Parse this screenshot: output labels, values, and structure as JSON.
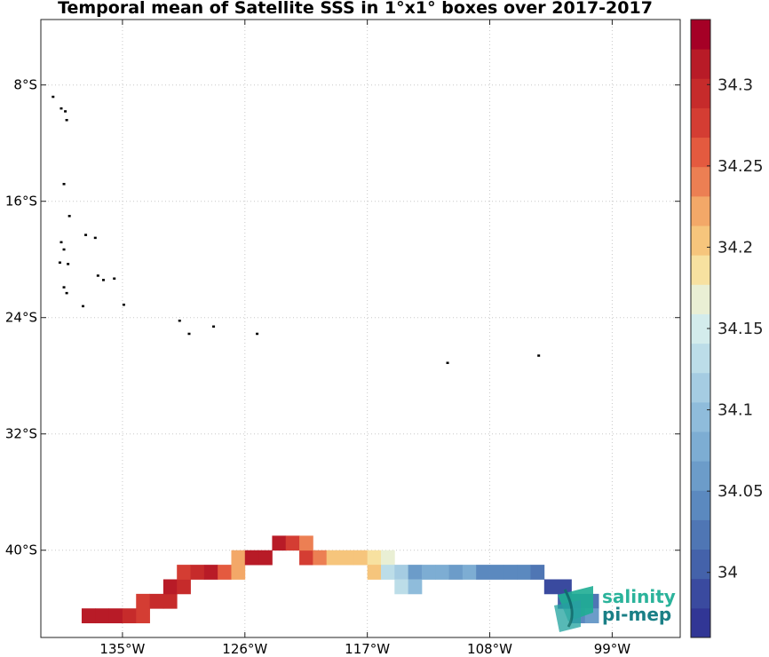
{
  "chart_data": {
    "type": "heatmap",
    "title": "Temporal mean of Satellite SSS in 1°x1° boxes over 2017-2017",
    "xlim": [
      -141,
      -94
    ],
    "ylim": [
      -46,
      -3.5
    ],
    "x_ticks": [
      -135,
      -126,
      -117,
      -108,
      -99
    ],
    "y_ticks": [
      -8,
      -16,
      -24,
      -32,
      -40
    ],
    "x_tick_labels": [
      "135°W",
      "126°W",
      "117°W",
      "108°W",
      "99°W"
    ],
    "y_tick_labels": [
      "8°S",
      "16°S",
      "24°S",
      "32°S",
      "40°S"
    ],
    "grid": true,
    "colorbar": {
      "range": [
        33.96,
        34.34
      ],
      "ticks": [
        34,
        34.05,
        34.1,
        34.15,
        34.2,
        34.25,
        34.3
      ],
      "tick_labels": [
        "34",
        "34.05",
        "34.1",
        "34.15",
        "34.2",
        "34.25",
        "34.3"
      ],
      "colors": [
        "#313695",
        "#3a4a9f",
        "#4462aa",
        "#4f76b4",
        "#5b89bf",
        "#6c9cc9",
        "#7dadd3",
        "#8fbcdb",
        "#a5cce2",
        "#bcdde8",
        "#d3ecec",
        "#e9efd4",
        "#f7e1a0",
        "#f6c57c",
        "#f3a868",
        "#ec7f53",
        "#e45a3f",
        "#d43d33",
        "#c62b2b",
        "#b81b27",
        "#a50026"
      ],
      "location": "right"
    },
    "cells": [
      [
        -138,
        -45,
        34.32
      ],
      [
        -137,
        -45,
        34.32
      ],
      [
        -136,
        -45,
        34.32
      ],
      [
        -135,
        -45,
        34.3
      ],
      [
        -134,
        -45,
        34.27
      ],
      [
        -134,
        -44,
        34.28
      ],
      [
        -133,
        -44,
        34.3
      ],
      [
        -132,
        -44,
        34.3
      ],
      [
        -132,
        -43,
        34.31
      ],
      [
        -131,
        -43,
        34.3
      ],
      [
        -131,
        -42,
        34.28
      ],
      [
        -130,
        -42,
        34.3
      ],
      [
        -129,
        -42,
        34.31
      ],
      [
        -128,
        -42,
        34.25
      ],
      [
        -127,
        -42,
        34.22
      ],
      [
        -127,
        -41,
        34.23
      ],
      [
        -126,
        -41,
        34.31
      ],
      [
        -125,
        -41,
        34.32
      ],
      [
        -122,
        -41,
        34.28
      ],
      [
        -121,
        -41,
        34.24
      ],
      [
        -120,
        -41,
        34.2
      ],
      [
        -119,
        -41,
        34.2
      ],
      [
        -118,
        -41,
        34.2
      ],
      [
        -117,
        -41,
        34.19
      ],
      [
        -116,
        -41,
        34.16
      ],
      [
        -124,
        -40,
        34.31
      ],
      [
        -123,
        -40,
        34.27
      ],
      [
        -122,
        -40,
        34.24
      ],
      [
        -117,
        -42,
        34.2
      ],
      [
        -116,
        -42,
        34.13
      ],
      [
        -115,
        -42,
        34.12
      ],
      [
        -114,
        -42,
        34.06
      ],
      [
        -113,
        -42,
        34.08
      ],
      [
        -112,
        -42,
        34.08
      ],
      [
        -111,
        -42,
        34.06
      ],
      [
        -110,
        -42,
        34.07
      ],
      [
        -109,
        -42,
        34.05
      ],
      [
        -108,
        -42,
        34.04
      ],
      [
        -107,
        -42,
        34.04
      ],
      [
        -106,
        -42,
        34.05
      ],
      [
        -105,
        -42,
        34.03
      ],
      [
        -115,
        -43,
        34.14
      ],
      [
        -114,
        -43,
        34.09
      ],
      [
        -104,
        -43,
        33.99
      ],
      [
        -103,
        -43,
        33.98
      ],
      [
        -103,
        -44,
        34.0
      ],
      [
        -102,
        -44,
        34.02
      ],
      [
        -101,
        -44,
        34.03
      ],
      [
        -102,
        -45,
        34.04
      ],
      [
        -101,
        -45,
        34.06
      ]
    ],
    "land": [
      [
        -140.1,
        -8.8
      ],
      [
        -139.5,
        -9.6
      ],
      [
        -139.2,
        -9.8
      ],
      [
        -139.1,
        -10.4
      ],
      [
        -139.3,
        -14.8
      ],
      [
        -138.9,
        -17.0
      ],
      [
        -137.7,
        -18.3
      ],
      [
        -137.0,
        -18.5
      ],
      [
        -139.5,
        -18.8
      ],
      [
        -139.3,
        -19.3
      ],
      [
        -139.6,
        -20.2
      ],
      [
        -139.0,
        -20.3
      ],
      [
        -136.8,
        -21.1
      ],
      [
        -136.4,
        -21.4
      ],
      [
        -135.6,
        -21.3
      ],
      [
        -139.3,
        -21.9
      ],
      [
        -139.1,
        -22.3
      ],
      [
        -137.9,
        -23.2
      ],
      [
        -134.9,
        -23.1
      ],
      [
        -130.8,
        -24.2
      ],
      [
        -128.3,
        -24.6
      ],
      [
        -130.1,
        -25.1
      ],
      [
        -125.1,
        -25.1
      ],
      [
        -111.1,
        -27.1
      ],
      [
        -104.4,
        -26.6
      ]
    ]
  },
  "logo": {
    "line1": "salinity",
    "line2": "pi-mep"
  }
}
